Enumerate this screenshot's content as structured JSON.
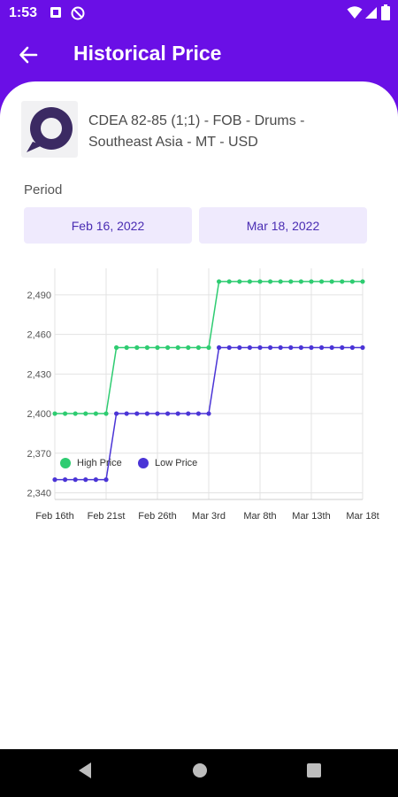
{
  "status_bar": {
    "time": "1:53",
    "icons": [
      "notification-icon",
      "dnd-icon",
      "wifi-icon",
      "signal-icon",
      "battery-icon"
    ]
  },
  "app_bar": {
    "title": "Historical Price",
    "back_icon": "arrow-left-icon"
  },
  "product": {
    "name": "CDEA 82-85 (1;1) - FOB - Drums - Southeast Asia - MT - USD"
  },
  "period": {
    "label": "Period",
    "start_date": "Feb 16, 2022",
    "end_date": "Mar 18, 2022"
  },
  "colors": {
    "accent": "#6a0fe6",
    "high_price": "#2ecc71",
    "low_price": "#4a34d6",
    "date_button_bg": "#efeafd"
  },
  "chart_data": {
    "type": "line",
    "x_tick_labels": [
      "Feb 16th",
      "Feb 21st",
      "Feb 26th",
      "Mar 3rd",
      "Mar 8th",
      "Mar 13th",
      "Mar 18t"
    ],
    "y_tick_labels": [
      "2,340",
      "2,370",
      "2,400",
      "2,430",
      "2,460",
      "2,490"
    ],
    "ylim": [
      2335,
      2510
    ],
    "x_days": 30,
    "grid": true,
    "legend_position": "bottom-left",
    "series": [
      {
        "name": "High Price",
        "color": "#2ecc71",
        "values": [
          2400,
          2400,
          2400,
          2400,
          2400,
          2400,
          2450,
          2450,
          2450,
          2450,
          2450,
          2450,
          2450,
          2450,
          2450,
          2450,
          2500,
          2500,
          2500,
          2500,
          2500,
          2500,
          2500,
          2500,
          2500,
          2500,
          2500,
          2500,
          2500,
          2500,
          2500
        ]
      },
      {
        "name": "Low Price",
        "color": "#4a34d6",
        "values": [
          2350,
          2350,
          2350,
          2350,
          2350,
          2350,
          2400,
          2400,
          2400,
          2400,
          2400,
          2400,
          2400,
          2400,
          2400,
          2400,
          2450,
          2450,
          2450,
          2450,
          2450,
          2450,
          2450,
          2450,
          2450,
          2450,
          2450,
          2450,
          2450,
          2450,
          2450
        ]
      }
    ]
  },
  "nav_bar": {
    "icons": [
      "back-triangle-icon",
      "home-circle-icon",
      "recents-square-icon"
    ]
  }
}
